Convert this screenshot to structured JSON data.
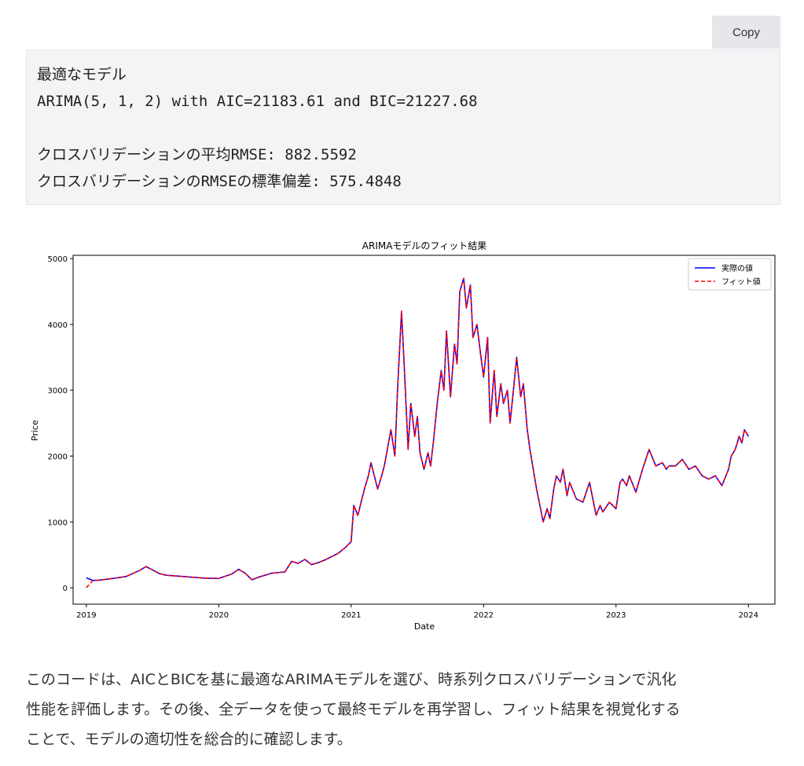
{
  "toolbar": {
    "copy_label": "Copy"
  },
  "code_output": {
    "lines": [
      "最適なモデル",
      "ARIMA(5, 1, 2) with AIC=21183.61 and BIC=21227.68",
      "",
      "クロスバリデーションの平均RMSE: 882.5592",
      "クロスバリデーションのRMSEの標準偏差: 575.4848"
    ]
  },
  "chart_data": {
    "type": "line",
    "title": "ARIMAモデルのフィット結果",
    "xlabel": "Date",
    "ylabel": "Price",
    "xlim": [
      2018.9,
      2024.2
    ],
    "ylim": [
      -250,
      5050
    ],
    "x_ticks": [
      "2019",
      "2020",
      "2021",
      "2022",
      "2023",
      "2024"
    ],
    "y_ticks": [
      "0",
      "1000",
      "2000",
      "3000",
      "4000",
      "5000"
    ],
    "legend": "top-right",
    "grid": false,
    "colors": {
      "actual": "#0000ff",
      "fitted": "#ff0000"
    },
    "series": [
      {
        "name": "実際の値",
        "style": "solid",
        "x": [
          2019.0,
          2019.05,
          2019.1,
          2019.2,
          2019.3,
          2019.4,
          2019.45,
          2019.5,
          2019.55,
          2019.6,
          2019.7,
          2019.8,
          2019.9,
          2020.0,
          2020.05,
          2020.1,
          2020.15,
          2020.2,
          2020.25,
          2020.3,
          2020.4,
          2020.5,
          2020.55,
          2020.6,
          2020.65,
          2020.7,
          2020.75,
          2020.8,
          2020.9,
          2020.95,
          2021.0,
          2021.02,
          2021.05,
          2021.1,
          2021.13,
          2021.15,
          2021.2,
          2021.23,
          2021.25,
          2021.3,
          2021.33,
          2021.35,
          2021.38,
          2021.4,
          2021.43,
          2021.45,
          2021.48,
          2021.5,
          2021.52,
          2021.55,
          2021.58,
          2021.6,
          2021.62,
          2021.65,
          2021.68,
          2021.7,
          2021.72,
          2021.75,
          2021.78,
          2021.8,
          2021.82,
          2021.85,
          2021.87,
          2021.9,
          2021.92,
          2021.95,
          2021.98,
          2022.0,
          2022.03,
          2022.05,
          2022.08,
          2022.1,
          2022.13,
          2022.15,
          2022.18,
          2022.2,
          2022.23,
          2022.25,
          2022.28,
          2022.3,
          2022.33,
          2022.35,
          2022.4,
          2022.43,
          2022.45,
          2022.48,
          2022.5,
          2022.53,
          2022.55,
          2022.58,
          2022.6,
          2022.63,
          2022.65,
          2022.7,
          2022.75,
          2022.8,
          2022.85,
          2022.88,
          2022.9,
          2022.95,
          2023.0,
          2023.03,
          2023.05,
          2023.08,
          2023.1,
          2023.15,
          2023.2,
          2023.25,
          2023.3,
          2023.35,
          2023.38,
          2023.4,
          2023.45,
          2023.5,
          2023.55,
          2023.6,
          2023.65,
          2023.7,
          2023.75,
          2023.8,
          2023.85,
          2023.87,
          2023.9,
          2023.93,
          2023.95,
          2023.97,
          2024.0
        ],
        "values": [
          150,
          110,
          115,
          140,
          170,
          260,
          320,
          270,
          215,
          190,
          175,
          160,
          145,
          140,
          175,
          210,
          280,
          220,
          120,
          160,
          220,
          240,
          400,
          370,
          430,
          350,
          380,
          420,
          520,
          600,
          700,
          1250,
          1100,
          1500,
          1700,
          1900,
          1500,
          1700,
          1850,
          2400,
          2000,
          3000,
          4200,
          3400,
          2100,
          2800,
          2300,
          2600,
          2050,
          1800,
          2050,
          1850,
          2200,
          2800,
          3300,
          3000,
          3900,
          2900,
          3700,
          3400,
          4500,
          4700,
          4250,
          4600,
          3800,
          4000,
          3500,
          3200,
          3800,
          2500,
          3300,
          2600,
          3100,
          2800,
          3000,
          2500,
          3100,
          3500,
          2900,
          3100,
          2400,
          2100,
          1500,
          1200,
          1000,
          1200,
          1050,
          1500,
          1700,
          1600,
          1800,
          1400,
          1600,
          1350,
          1300,
          1600,
          1100,
          1250,
          1150,
          1300,
          1200,
          1600,
          1650,
          1550,
          1700,
          1450,
          1800,
          2100,
          1850,
          1900,
          1800,
          1850,
          1850,
          1950,
          1800,
          1850,
          1700,
          1650,
          1700,
          1550,
          1800,
          2000,
          2100,
          2300,
          2200,
          2400,
          2300
        ]
      },
      {
        "name": "フィット値",
        "style": "dashed",
        "x": [
          2019.0,
          2019.05,
          2019.1,
          2019.2,
          2019.3,
          2019.4,
          2019.45,
          2019.5,
          2019.55,
          2019.6,
          2019.7,
          2019.8,
          2019.9,
          2020.0,
          2020.05,
          2020.1,
          2020.15,
          2020.2,
          2020.25,
          2020.3,
          2020.4,
          2020.5,
          2020.55,
          2020.6,
          2020.65,
          2020.7,
          2020.75,
          2020.8,
          2020.9,
          2020.95,
          2021.0,
          2021.02,
          2021.05,
          2021.1,
          2021.13,
          2021.15,
          2021.2,
          2021.23,
          2021.25,
          2021.3,
          2021.33,
          2021.35,
          2021.38,
          2021.4,
          2021.43,
          2021.45,
          2021.48,
          2021.5,
          2021.52,
          2021.55,
          2021.58,
          2021.6,
          2021.62,
          2021.65,
          2021.68,
          2021.7,
          2021.72,
          2021.75,
          2021.78,
          2021.8,
          2021.82,
          2021.85,
          2021.87,
          2021.9,
          2021.92,
          2021.95,
          2021.98,
          2022.0,
          2022.03,
          2022.05,
          2022.08,
          2022.1,
          2022.13,
          2022.15,
          2022.18,
          2022.2,
          2022.23,
          2022.25,
          2022.28,
          2022.3,
          2022.33,
          2022.35,
          2022.4,
          2022.43,
          2022.45,
          2022.48,
          2022.5,
          2022.53,
          2022.55,
          2022.58,
          2022.6,
          2022.63,
          2022.65,
          2022.7,
          2022.75,
          2022.8,
          2022.85,
          2022.88,
          2022.9,
          2022.95,
          2023.0,
          2023.03,
          2023.05,
          2023.08,
          2023.1,
          2023.15,
          2023.2,
          2023.25,
          2023.3,
          2023.35,
          2023.38,
          2023.4,
          2023.45,
          2023.5,
          2023.55,
          2023.6,
          2023.65,
          2023.7,
          2023.75,
          2023.8,
          2023.85,
          2023.87,
          2023.9,
          2023.93,
          2023.95,
          2023.97,
          2024.0
        ],
        "values": [
          0,
          110,
          115,
          140,
          170,
          260,
          320,
          270,
          215,
          190,
          175,
          160,
          145,
          140,
          175,
          210,
          280,
          220,
          120,
          160,
          220,
          240,
          400,
          370,
          430,
          350,
          380,
          420,
          520,
          600,
          700,
          1250,
          1100,
          1500,
          1700,
          1900,
          1500,
          1700,
          1850,
          2400,
          2000,
          3000,
          4200,
          3400,
          2100,
          2800,
          2300,
          2600,
          2050,
          1800,
          2050,
          1850,
          2200,
          2800,
          3300,
          3000,
          3900,
          2900,
          3700,
          3400,
          4500,
          4700,
          4250,
          4600,
          3800,
          4000,
          3500,
          3200,
          3800,
          2500,
          3300,
          2600,
          3100,
          2800,
          3000,
          2500,
          3100,
          3500,
          2900,
          3100,
          2400,
          2100,
          1500,
          1200,
          1000,
          1200,
          1050,
          1500,
          1700,
          1600,
          1800,
          1400,
          1600,
          1350,
          1300,
          1600,
          1100,
          1250,
          1150,
          1300,
          1200,
          1600,
          1650,
          1550,
          1700,
          1450,
          1800,
          2100,
          1850,
          1900,
          1800,
          1850,
          1850,
          1950,
          1800,
          1850,
          1700,
          1650,
          1700,
          1550,
          1800,
          2000,
          2100,
          2300,
          2200,
          2400,
          2300
        ]
      }
    ]
  },
  "description": {
    "lines": [
      "このコードは、AICとBICを基に最適なARIMAモデルを選び、時系列クロスバリデーションで汎化",
      "性能を評価します。その後、全データを使って最終モデルを再学習し、フィット結果を視覚化する",
      "ことで、モデルの適切性を総合的に確認します。"
    ]
  }
}
